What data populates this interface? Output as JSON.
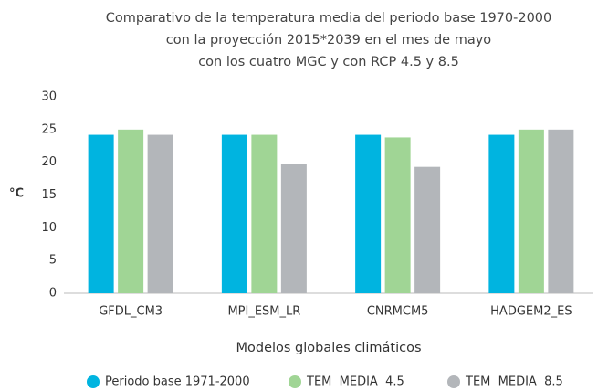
{
  "chart_data": {
    "type": "bar",
    "title": [
      "Comparativo de la temperatura media del periodo base 1970-2000",
      "con la proyección 2015*2039 en el mes de mayo",
      "con los cuatro MGC y con RCP 4.5 y 8.5"
    ],
    "y_label": "°C",
    "x_label": "Modelos globales climáticos",
    "categories": [
      "GFDL_CM3",
      "MPI_ESM_LR",
      "CNRMCM5",
      "HADGEM2_ES"
    ],
    "series": [
      {
        "name": "Periodo base 1971-2000",
        "color": "#00b4e0",
        "values": [
          24.2,
          24.2,
          24.2,
          24.2
        ]
      },
      {
        "name": "TEM  MEDIA  4.5",
        "color": "#a0d595",
        "values": [
          25,
          24.2,
          23.8,
          25
        ]
      },
      {
        "name": "TEM  MEDIA  8.5",
        "color": "#b3b6ba",
        "values": [
          24.2,
          19.8,
          19.3,
          25
        ]
      }
    ],
    "ylim": [
      0,
      30
    ],
    "yticks": [
      0,
      5,
      10,
      15,
      20,
      25,
      30
    ],
    "grid": false
  }
}
